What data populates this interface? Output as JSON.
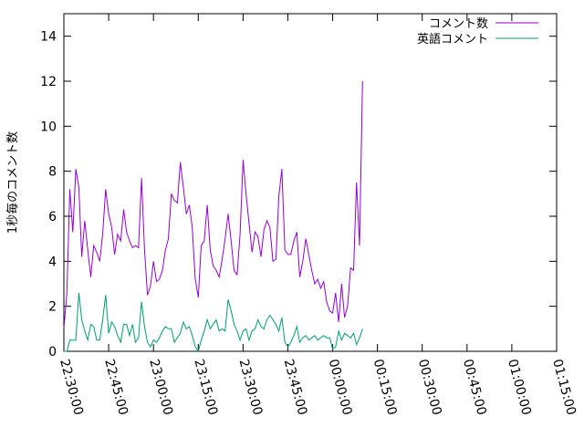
{
  "chart_data": {
    "type": "line",
    "title": "",
    "xlabel": "",
    "ylabel": "1秒毎のコメント数",
    "ylim": [
      0,
      15
    ],
    "yticks": [
      0,
      2,
      4,
      6,
      8,
      10,
      12,
      14
    ],
    "xlim": [
      "22:30:00",
      "01:15:00"
    ],
    "xticks": [
      "22:30:00",
      "22:45:00",
      "23:00:00",
      "23:15:00",
      "23:30:00",
      "23:45:00",
      "00:00:00",
      "00:15:00",
      "00:30:00",
      "00:45:00",
      "01:00:00",
      "01:15:00"
    ],
    "grid": false,
    "legend_position": "top-right",
    "series": [
      {
        "name": "コメント数",
        "color": "#9400d3",
        "points": [
          [
            "22:30:00",
            1.0
          ],
          [
            "22:31:00",
            2.6
          ],
          [
            "22:32:00",
            7.2
          ],
          [
            "22:33:00",
            5.3
          ],
          [
            "22:34:00",
            8.1
          ],
          [
            "22:35:00",
            7.3
          ],
          [
            "22:36:00",
            4.2
          ],
          [
            "22:37:00",
            5.8
          ],
          [
            "22:38:00",
            4.5
          ],
          [
            "22:39:00",
            3.3
          ],
          [
            "22:40:00",
            4.7
          ],
          [
            "22:41:00",
            4.4
          ],
          [
            "22:42:00",
            4.0
          ],
          [
            "22:43:00",
            5.2
          ],
          [
            "22:44:00",
            7.2
          ],
          [
            "22:45:00",
            6.1
          ],
          [
            "22:46:00",
            5.5
          ],
          [
            "22:47:00",
            4.3
          ],
          [
            "22:48:00",
            5.2
          ],
          [
            "22:49:00",
            4.9
          ],
          [
            "22:50:00",
            6.3
          ],
          [
            "22:51:00",
            5.3
          ],
          [
            "22:52:00",
            4.9
          ],
          [
            "22:53:00",
            4.6
          ],
          [
            "22:54:00",
            4.7
          ],
          [
            "22:55:00",
            4.6
          ],
          [
            "22:56:00",
            7.7
          ],
          [
            "22:57:00",
            4.5
          ],
          [
            "22:58:00",
            2.5
          ],
          [
            "22:59:00",
            2.9
          ],
          [
            "23:00:00",
            4.0
          ],
          [
            "23:01:00",
            3.1
          ],
          [
            "23:02:00",
            3.2
          ],
          [
            "23:03:00",
            3.6
          ],
          [
            "23:04:00",
            4.5
          ],
          [
            "23:05:00",
            5.0
          ],
          [
            "23:06:00",
            7.0
          ],
          [
            "23:07:00",
            6.7
          ],
          [
            "23:08:00",
            6.6
          ],
          [
            "23:09:00",
            8.4
          ],
          [
            "23:10:00",
            7.3
          ],
          [
            "23:11:00",
            6.1
          ],
          [
            "23:12:00",
            6.5
          ],
          [
            "23:13:00",
            5.5
          ],
          [
            "23:14:00",
            3.2
          ],
          [
            "23:15:00",
            2.4
          ],
          [
            "23:16:00",
            4.7
          ],
          [
            "23:17:00",
            4.9
          ],
          [
            "23:18:00",
            6.5
          ],
          [
            "23:19:00",
            4.5
          ],
          [
            "23:20:00",
            3.8
          ],
          [
            "23:21:00",
            3.6
          ],
          [
            "23:22:00",
            3.3
          ],
          [
            "23:23:00",
            4.1
          ],
          [
            "23:24:00",
            5.0
          ],
          [
            "23:25:00",
            6.1
          ],
          [
            "23:26:00",
            4.9
          ],
          [
            "23:27:00",
            3.6
          ],
          [
            "23:28:00",
            3.4
          ],
          [
            "23:29:00",
            5.2
          ],
          [
            "23:30:00",
            8.5
          ],
          [
            "23:31:00",
            7.0
          ],
          [
            "23:32:00",
            5.7
          ],
          [
            "23:33:00",
            4.4
          ],
          [
            "23:34:00",
            5.3
          ],
          [
            "23:35:00",
            5.1
          ],
          [
            "23:36:00",
            4.2
          ],
          [
            "23:37:00",
            5.4
          ],
          [
            "23:38:00",
            5.8
          ],
          [
            "23:39:00",
            5.5
          ],
          [
            "23:40:00",
            4.0
          ],
          [
            "23:41:00",
            4.1
          ],
          [
            "23:42:00",
            6.9
          ],
          [
            "23:43:00",
            8.1
          ],
          [
            "23:44:00",
            4.5
          ],
          [
            "23:45:00",
            4.3
          ],
          [
            "23:46:00",
            4.3
          ],
          [
            "23:47:00",
            4.9
          ],
          [
            "23:48:00",
            5.3
          ],
          [
            "23:49:00",
            3.3
          ],
          [
            "23:50:00",
            4.0
          ],
          [
            "23:51:00",
            5.0
          ],
          [
            "23:52:00",
            4.3
          ],
          [
            "23:53:00",
            3.6
          ],
          [
            "23:54:00",
            3.0
          ],
          [
            "23:55:00",
            3.2
          ],
          [
            "23:56:00",
            2.8
          ],
          [
            "23:57:00",
            3.1
          ],
          [
            "23:58:00",
            2.2
          ],
          [
            "23:59:00",
            1.8
          ],
          [
            "00:00:00",
            1.7
          ],
          [
            "00:01:00",
            2.6
          ],
          [
            "00:02:00",
            1.3
          ],
          [
            "00:03:00",
            3.0
          ],
          [
            "00:04:00",
            1.5
          ],
          [
            "00:05:00",
            2.0
          ],
          [
            "00:06:00",
            3.7
          ],
          [
            "00:07:00",
            3.6
          ],
          [
            "00:08:00",
            7.5
          ],
          [
            "00:09:00",
            4.7
          ],
          [
            "00:10:00",
            12.0
          ]
        ]
      },
      {
        "name": "英語コメント",
        "color": "#009e73",
        "points": [
          [
            "22:30:00",
            0.0
          ],
          [
            "22:31:00",
            0.0
          ],
          [
            "22:32:00",
            0.5
          ],
          [
            "22:33:00",
            0.5
          ],
          [
            "22:34:00",
            0.5
          ],
          [
            "22:35:00",
            2.6
          ],
          [
            "22:36:00",
            1.4
          ],
          [
            "22:37:00",
            0.9
          ],
          [
            "22:38:00",
            0.5
          ],
          [
            "22:39:00",
            1.2
          ],
          [
            "22:40:00",
            1.1
          ],
          [
            "22:41:00",
            0.5
          ],
          [
            "22:42:00",
            0.5
          ],
          [
            "22:43:00",
            1.4
          ],
          [
            "22:44:00",
            2.5
          ],
          [
            "22:45:00",
            0.8
          ],
          [
            "22:46:00",
            1.3
          ],
          [
            "22:47:00",
            1.1
          ],
          [
            "22:48:00",
            0.7
          ],
          [
            "22:49:00",
            0.4
          ],
          [
            "22:50:00",
            1.2
          ],
          [
            "22:51:00",
            1.2
          ],
          [
            "22:52:00",
            0.7
          ],
          [
            "22:53:00",
            1.2
          ],
          [
            "22:54:00",
            0.4
          ],
          [
            "22:55:00",
            0.6
          ],
          [
            "22:56:00",
            2.2
          ],
          [
            "22:57:00",
            1.1
          ],
          [
            "22:58:00",
            0.4
          ],
          [
            "22:59:00",
            0.2
          ],
          [
            "23:00:00",
            0.5
          ],
          [
            "23:01:00",
            0.4
          ],
          [
            "23:02:00",
            0.6
          ],
          [
            "23:03:00",
            0.9
          ],
          [
            "23:04:00",
            1.1
          ],
          [
            "23:05:00",
            1.0
          ],
          [
            "23:06:00",
            1.0
          ],
          [
            "23:07:00",
            0.4
          ],
          [
            "23:08:00",
            0.6
          ],
          [
            "23:09:00",
            0.8
          ],
          [
            "23:10:00",
            1.3
          ],
          [
            "23:11:00",
            1.0
          ],
          [
            "23:12:00",
            1.1
          ],
          [
            "23:13:00",
            0.7
          ],
          [
            "23:14:00",
            0.2
          ],
          [
            "23:15:00",
            0.0
          ],
          [
            "23:16:00",
            0.5
          ],
          [
            "23:17:00",
            0.9
          ],
          [
            "23:18:00",
            1.4
          ],
          [
            "23:19:00",
            1.0
          ],
          [
            "23:20:00",
            1.2
          ],
          [
            "23:21:00",
            1.4
          ],
          [
            "23:22:00",
            0.9
          ],
          [
            "23:23:00",
            1.0
          ],
          [
            "23:24:00",
            0.9
          ],
          [
            "23:25:00",
            2.3
          ],
          [
            "23:26:00",
            1.8
          ],
          [
            "23:27:00",
            1.2
          ],
          [
            "23:28:00",
            0.9
          ],
          [
            "23:29:00",
            0.5
          ],
          [
            "23:30:00",
            0.9
          ],
          [
            "23:31:00",
            1.0
          ],
          [
            "23:32:00",
            0.5
          ],
          [
            "23:33:00",
            0.9
          ],
          [
            "23:34:00",
            1.0
          ],
          [
            "23:35:00",
            1.4
          ],
          [
            "23:36:00",
            1.1
          ],
          [
            "23:37:00",
            1.0
          ],
          [
            "23:38:00",
            1.4
          ],
          [
            "23:39:00",
            1.6
          ],
          [
            "23:40:00",
            1.4
          ],
          [
            "23:41:00",
            1.2
          ],
          [
            "23:42:00",
            0.9
          ],
          [
            "23:43:00",
            1.5
          ],
          [
            "23:44:00",
            0.4
          ],
          [
            "23:45:00",
            0.2
          ],
          [
            "23:46:00",
            0.4
          ],
          [
            "23:47:00",
            0.7
          ],
          [
            "23:48:00",
            1.1
          ],
          [
            "23:49:00",
            0.4
          ],
          [
            "23:50:00",
            0.6
          ],
          [
            "23:51:00",
            0.7
          ],
          [
            "23:52:00",
            0.5
          ],
          [
            "23:53:00",
            0.6
          ],
          [
            "23:54:00",
            0.7
          ],
          [
            "23:55:00",
            0.5
          ],
          [
            "23:56:00",
            0.6
          ],
          [
            "23:57:00",
            0.7
          ],
          [
            "23:58:00",
            0.6
          ],
          [
            "23:59:00",
            0.6
          ],
          [
            "00:00:00",
            0.1
          ],
          [
            "00:01:00",
            0.2
          ],
          [
            "00:02:00",
            0.9
          ],
          [
            "00:03:00",
            0.5
          ],
          [
            "00:04:00",
            0.8
          ],
          [
            "00:05:00",
            0.7
          ],
          [
            "00:06:00",
            0.6
          ],
          [
            "00:07:00",
            0.8
          ],
          [
            "00:08:00",
            0.3
          ],
          [
            "00:09:00",
            0.6
          ],
          [
            "00:10:00",
            1.0
          ]
        ]
      }
    ]
  }
}
